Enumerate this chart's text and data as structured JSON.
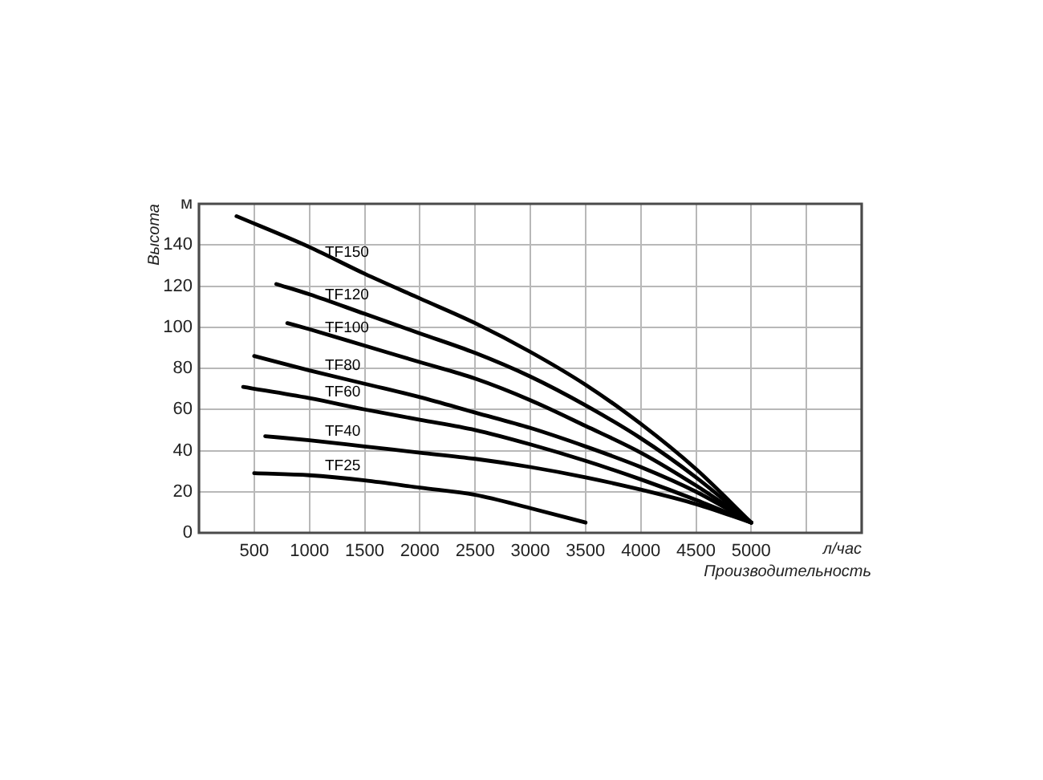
{
  "chart_data": {
    "type": "line",
    "xlabel": "Производительность",
    "ylabel": "Высота",
    "annotations": [
      "л/час"
    ],
    "xlim": [
      0,
      6000
    ],
    "xticks": [
      500,
      1000,
      1500,
      2000,
      2500,
      3000,
      3500,
      4000,
      4500,
      5000,
      {
        "value": 5500,
        "label": null
      }
    ],
    "ylim": [
      0,
      160
    ],
    "yticks": [
      0,
      20,
      40,
      60,
      80,
      100,
      120,
      140,
      {
        "value": 160,
        "label": "м"
      }
    ],
    "grid": true,
    "marker": "none",
    "line_style": "solid",
    "series": [
      {
        "name": "TF150",
        "color": "#000000",
        "x": [
          340,
          1000,
          1500,
          2000,
          2500,
          3000,
          3500,
          4000,
          4500,
          5000
        ],
        "values": [
          154,
          139,
          126,
          114,
          102,
          88,
          72,
          53,
          31,
          5
        ]
      },
      {
        "name": "TF120",
        "color": "#000000",
        "x": [
          700,
          1000,
          1500,
          2000,
          2500,
          3000,
          3500,
          4000,
          4500,
          5000
        ],
        "values": [
          121,
          116,
          106.5,
          97,
          87.5,
          76,
          62,
          46,
          27,
          5
        ]
      },
      {
        "name": "TF100",
        "color": "#000000",
        "x": [
          800,
          1000,
          1500,
          2000,
          2500,
          3000,
          3500,
          4000,
          4500,
          5000
        ],
        "values": [
          102,
          99,
          91,
          83,
          75,
          64.5,
          52,
          39,
          23,
          5
        ]
      },
      {
        "name": "TF80",
        "color": "#000000",
        "x": [
          500,
          1000,
          1500,
          2000,
          2500,
          3000,
          3500,
          4000,
          4500,
          5000
        ],
        "values": [
          86,
          79,
          72.5,
          66,
          58.5,
          51,
          42,
          32,
          20,
          5
        ]
      },
      {
        "name": "TF60",
        "color": "#000000",
        "x": [
          400,
          1000,
          1500,
          2000,
          2500,
          3000,
          3500,
          4000,
          4500,
          5000
        ],
        "values": [
          71,
          65.5,
          60,
          55,
          50,
          43,
          35,
          26,
          16,
          5
        ]
      },
      {
        "name": "TF40",
        "color": "#000000",
        "x": [
          600,
          1000,
          1500,
          2000,
          2500,
          3000,
          3500,
          4000,
          4500,
          5000
        ],
        "values": [
          47,
          45,
          42,
          39,
          36,
          32,
          27,
          21,
          14,
          5
        ]
      },
      {
        "name": "TF25",
        "color": "#000000",
        "x": [
          500,
          1000,
          1500,
          2000,
          2500,
          3000,
          3500
        ],
        "values": [
          29,
          28,
          25.5,
          22,
          18.5,
          12,
          5
        ]
      }
    ]
  }
}
